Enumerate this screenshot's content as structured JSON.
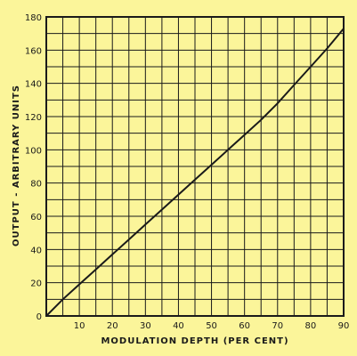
{
  "chart_data": {
    "type": "line",
    "title": "",
    "xlabel": "MODULATION DEPTH (PER CENT)",
    "ylabel": "OUTPUT - ARBITRARY UNITS",
    "xlim": [
      0,
      90
    ],
    "ylim": [
      0,
      180
    ],
    "x_ticks": [
      "10",
      "20",
      "30",
      "40",
      "50",
      "60",
      "70",
      "80",
      "90"
    ],
    "y_ticks": [
      "0",
      "20",
      "40",
      "60",
      "80",
      "100",
      "120",
      "140",
      "160",
      "180"
    ],
    "grid": true,
    "series": [
      {
        "x": [
          0,
          5,
          10,
          15,
          20,
          25,
          30,
          35,
          40,
          45,
          50,
          55,
          60,
          65,
          70,
          75,
          80,
          85,
          90
        ],
        "y": [
          0,
          10,
          19,
          28,
          37,
          46,
          55,
          64,
          73,
          82,
          91,
          100,
          109,
          118,
          128,
          139,
          150,
          161,
          173
        ]
      }
    ],
    "colors": {
      "background": "#fbf59a",
      "ink": "#1a1a1a"
    }
  }
}
